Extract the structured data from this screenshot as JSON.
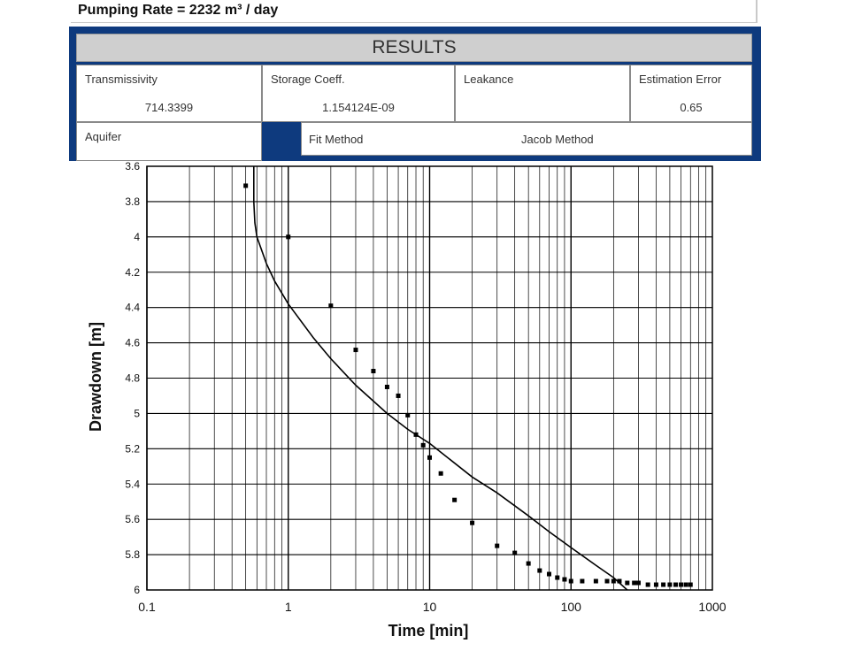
{
  "header": {
    "pumping_rate": "Pumping Rate = 2232 m³ / day"
  },
  "results": {
    "title": "RESULTS",
    "transmissivity": {
      "label": "Transmissivity",
      "value": "714.3399"
    },
    "storage": {
      "label": "Storage Coeff.",
      "value": "1.154124E-09"
    },
    "leakance": {
      "label": "Leakance",
      "value": ""
    },
    "error": {
      "label": "Estimation Error",
      "value": "0.65"
    },
    "aquifer": {
      "label": "Aquifer"
    },
    "fit": {
      "label": "Fit Method",
      "value": "Jacob Method"
    },
    "accent_color": "#0e3a7e"
  },
  "chart_data": {
    "type": "scatter",
    "xlabel": "Time [min]",
    "ylabel": "Drawdown [m]",
    "xscale": "log",
    "xlim": [
      0.1,
      1000
    ],
    "ylim": [
      3.6,
      6
    ],
    "y_inverted": true,
    "grid": true,
    "x_ticks": [
      "0.1",
      "1",
      "10",
      "100",
      "1000"
    ],
    "y_ticks": [
      "3.6",
      "3.8",
      "4",
      "4.2",
      "4.4",
      "4.6",
      "4.8",
      "5",
      "5.2",
      "5.4",
      "5.6",
      "5.8",
      "6"
    ],
    "series": [
      {
        "kind": "points",
        "x": [
          0.5,
          1,
          2,
          3,
          4,
          5,
          6,
          7,
          8,
          9,
          10,
          12,
          15,
          20,
          30,
          40,
          50,
          60,
          70,
          80,
          90,
          100,
          120,
          150,
          180,
          200,
          220,
          250,
          280,
          300,
          350,
          400,
          450,
          500,
          550,
          600,
          650,
          700
        ],
        "y": [
          3.71,
          4.0,
          4.39,
          4.64,
          4.76,
          4.85,
          4.9,
          5.01,
          5.12,
          5.18,
          5.25,
          5.34,
          5.49,
          5.62,
          5.75,
          5.79,
          5.85,
          5.89,
          5.91,
          5.93,
          5.94,
          5.95,
          5.95,
          5.95,
          5.95,
          5.95,
          5.95,
          5.96,
          5.96,
          5.96,
          5.97,
          5.97,
          5.97,
          5.97,
          5.97,
          5.97,
          5.97,
          5.97
        ]
      },
      {
        "kind": "line",
        "x": [
          0.57,
          0.57,
          0.58,
          0.6,
          0.7,
          0.8,
          1,
          1.5,
          2,
          3,
          5,
          7,
          10,
          20,
          30,
          50,
          70,
          100,
          150,
          200,
          250
        ],
        "y": [
          3.6,
          3.8,
          3.92,
          4.0,
          4.15,
          4.25,
          4.38,
          4.57,
          4.69,
          4.84,
          5.0,
          5.09,
          5.17,
          5.36,
          5.45,
          5.58,
          5.67,
          5.76,
          5.86,
          5.93,
          6.0
        ]
      }
    ],
    "colors": {
      "points": "#000000",
      "line": "#000000",
      "grid": "#000000"
    }
  }
}
